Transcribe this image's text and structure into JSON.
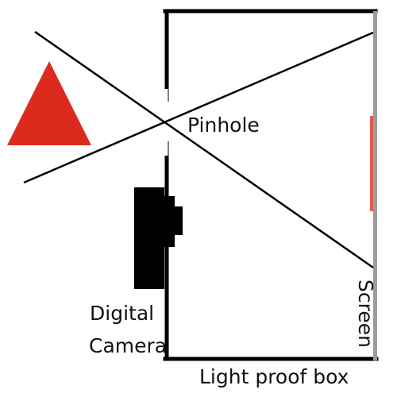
{
  "labels": {
    "pinhole": "Pinhole",
    "camera_line1": "Digital",
    "camera_line2": "Camera",
    "box": "Light proof box",
    "screen": "Screen"
  },
  "colors": {
    "object_triangle": "#dd2a1e",
    "projected_image": "#e05a4f",
    "screen": "#9c9c9c",
    "lines": "#000000"
  },
  "icons": {
    "object": "red-triangle",
    "camera": "camera-silhouette"
  }
}
